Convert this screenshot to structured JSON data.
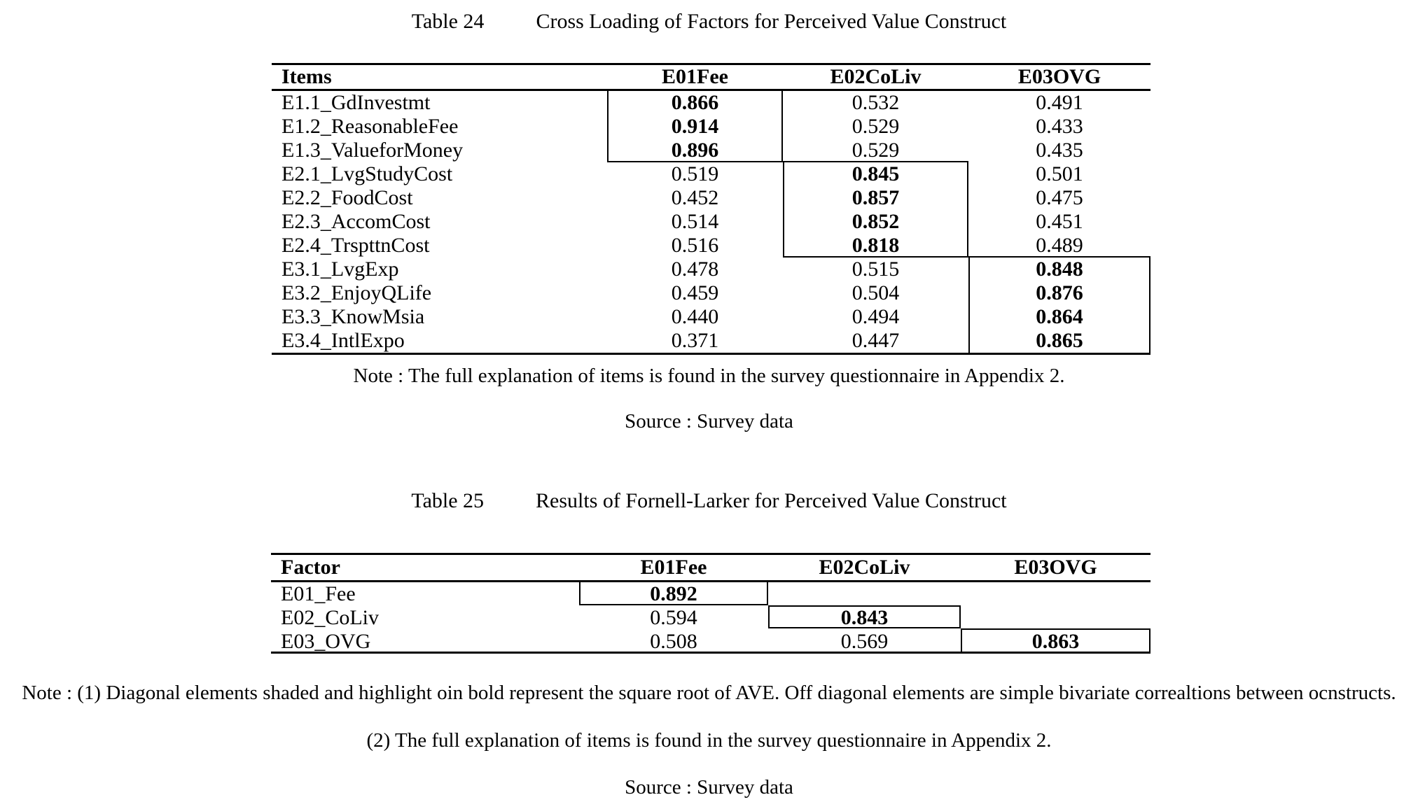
{
  "colors": {
    "text": "#000000",
    "background": "#ffffff",
    "rule": "#000000"
  },
  "table24": {
    "label": "Table 24",
    "caption": "Cross Loading of Factors for Perceived Value Construct",
    "columns": [
      "Items",
      "E01Fee",
      "E02CoLiv",
      "E03OVG"
    ],
    "rows": [
      {
        "item": "E1.1_GdInvestmt",
        "values": [
          "0.866",
          "0.532",
          "0.491"
        ],
        "bold_col": 0
      },
      {
        "item": "E1.2_ReasonableFee",
        "values": [
          "0.914",
          "0.529",
          "0.433"
        ],
        "bold_col": 0
      },
      {
        "item": "E1.3_ValueforMoney",
        "values": [
          "0.896",
          "0.529",
          "0.435"
        ],
        "bold_col": 0
      },
      {
        "item": "E2.1_LvgStudyCost",
        "values": [
          "0.519",
          "0.845",
          "0.501"
        ],
        "bold_col": 1
      },
      {
        "item": "E2.2_FoodCost",
        "values": [
          "0.452",
          "0.857",
          "0.475"
        ],
        "bold_col": 1
      },
      {
        "item": "E2.3_AccomCost",
        "values": [
          "0.514",
          "0.852",
          "0.451"
        ],
        "bold_col": 1
      },
      {
        "item": "E2.4_TrspttnCost",
        "values": [
          "0.516",
          "0.818",
          "0.489"
        ],
        "bold_col": 1
      },
      {
        "item": "E3.1_LvgExp",
        "values": [
          "0.478",
          "0.515",
          "0.848"
        ],
        "bold_col": 2
      },
      {
        "item": "E3.2_EnjoyQLife",
        "values": [
          "0.459",
          "0.504",
          "0.876"
        ],
        "bold_col": 2
      },
      {
        "item": "E3.3_KnowMsia",
        "values": [
          "0.440",
          "0.494",
          "0.864"
        ],
        "bold_col": 2
      },
      {
        "item": "E3.4_IntlExpo",
        "values": [
          "0.371",
          "0.447",
          "0.865"
        ],
        "bold_col": 2
      }
    ],
    "note": "Note : The full explanation of items is found in the survey questionnaire in Appendix 2.",
    "source": "Source : Survey data"
  },
  "table25": {
    "label": "Table 25",
    "caption": "Results of Fornell-Larker for Perceived Value Construct",
    "columns": [
      "Factor",
      "E01Fee",
      "E02CoLiv",
      "E03OVG"
    ],
    "rows": [
      {
        "item": "E01_Fee",
        "values": [
          "0.892",
          "",
          ""
        ],
        "bold_col": 0
      },
      {
        "item": "E02_CoLiv",
        "values": [
          "0.594",
          "0.843",
          ""
        ],
        "bold_col": 1
      },
      {
        "item": "E03_OVG",
        "values": [
          "0.508",
          "0.569",
          "0.863"
        ],
        "bold_col": 2
      }
    ],
    "note_line1": "Note : (1) Diagonal elements shaded and highlight oin bold represent the square root of AVE. Off diagonal elements are simple bivariate correaltions between ocnstructs.",
    "note_line2": "(2) The full explanation of items is found in the survey questionnaire in Appendix 2.",
    "source": "Source : Survey data"
  }
}
